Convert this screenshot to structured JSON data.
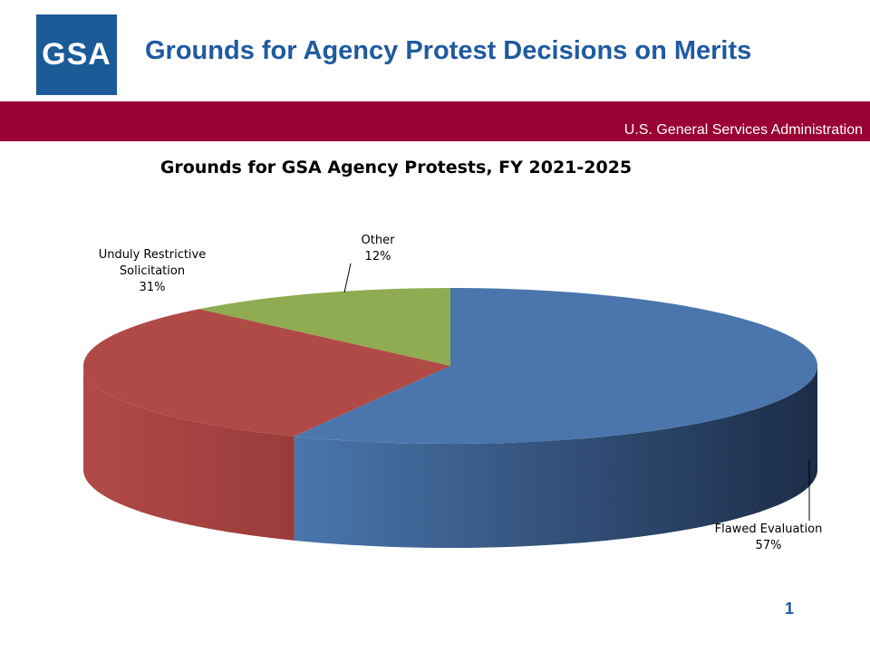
{
  "header": {
    "logo": "GSA",
    "title": "Grounds for Agency Protest Decisions on Merits",
    "agency": "U.S. General Services Administration"
  },
  "chart_data": {
    "type": "pie",
    "title": "Grounds for GSA Agency Protests, FY 2021-2025",
    "categories": [
      "Flawed Evaluation",
      "Unduly Restrictive Solicitation",
      "Other"
    ],
    "values": [
      57,
      31,
      12
    ],
    "value_labels": [
      "57%",
      "31%",
      "12%"
    ],
    "colors": [
      "#4a76ad",
      "#b04a47",
      "#8fac52"
    ]
  },
  "page_number": "1"
}
